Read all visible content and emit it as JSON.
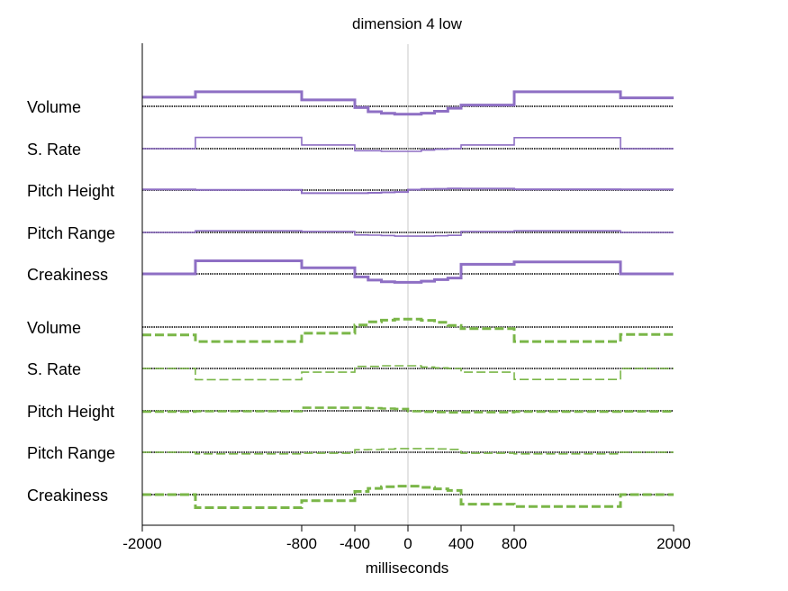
{
  "chart_data": {
    "type": "line",
    "title": "dimension  4 low",
    "xlabel": "milliseconds",
    "ylabel": "",
    "xlim": [
      -2000,
      2000
    ],
    "xticks": [
      -2000,
      -800,
      -400,
      0,
      400,
      800,
      2000
    ],
    "grid": false,
    "center_line_x": 0,
    "segment_edges": [
      -2000,
      -1600,
      -800,
      -400,
      -300,
      -200,
      -100,
      0,
      100,
      200,
      300,
      400,
      800,
      1600,
      2000
    ],
    "series_styles": [
      {
        "color": "#8e6fc4",
        "dash": "solid"
      },
      {
        "color": "#7ab648",
        "dash": "dashed"
      }
    ],
    "rows": [
      {
        "label": "Volume",
        "group": 0,
        "weight": 3,
        "values": [
          0.44,
          0.7,
          0.31,
          -0.06,
          -0.26,
          -0.34,
          -0.38,
          -0.38,
          -0.33,
          -0.24,
          -0.09,
          0.06,
          0.7,
          0.41
        ]
      },
      {
        "label": "S. Rate",
        "group": 0,
        "weight": 1.6,
        "values": [
          0,
          0.54,
          0.18,
          -0.1,
          -0.1,
          -0.13,
          -0.13,
          -0.13,
          -0.07,
          -0.03,
          0,
          0.18,
          0.53,
          0
        ]
      },
      {
        "label": "Pitch Height",
        "group": 0,
        "weight": 2,
        "values": [
          0.03,
          0.01,
          -0.15,
          -0.15,
          -0.13,
          -0.11,
          -0.09,
          0.02,
          0.05,
          0.06,
          0.08,
          0.07,
          0.04,
          0.03
        ]
      },
      {
        "label": "Pitch Range",
        "group": 0,
        "weight": 1.6,
        "values": [
          0,
          0.08,
          0.05,
          -0.12,
          -0.13,
          -0.15,
          -0.18,
          -0.18,
          -0.18,
          -0.16,
          -0.14,
          0.05,
          0.08,
          0
        ]
      },
      {
        "label": "Creakiness",
        "group": 0,
        "weight": 3,
        "values": [
          0,
          0.63,
          0.29,
          -0.15,
          -0.3,
          -0.38,
          -0.41,
          -0.41,
          -0.35,
          -0.28,
          -0.2,
          0.46,
          0.58,
          0
        ]
      },
      {
        "label": "Volume",
        "group": 1,
        "weight": 3,
        "values": [
          -0.38,
          -0.7,
          -0.3,
          0.1,
          0.25,
          0.33,
          0.38,
          0.38,
          0.32,
          0.23,
          0.08,
          -0.08,
          -0.7,
          -0.36
        ]
      },
      {
        "label": "S. Rate",
        "group": 1,
        "weight": 1.6,
        "values": [
          0,
          -0.54,
          -0.18,
          0.1,
          0.1,
          0.13,
          0.13,
          0.13,
          0.07,
          0.03,
          0,
          -0.18,
          -0.53,
          0
        ]
      },
      {
        "label": "Pitch Height",
        "group": 1,
        "weight": 2.6,
        "values": [
          -0.04,
          -0.02,
          0.15,
          0.15,
          0.13,
          0.11,
          0.09,
          -0.02,
          -0.05,
          -0.06,
          -0.08,
          -0.07,
          -0.04,
          -0.03
        ]
      },
      {
        "label": "Pitch Range",
        "group": 1,
        "weight": 1.6,
        "values": [
          0,
          -0.08,
          -0.05,
          0.12,
          0.13,
          0.15,
          0.18,
          0.18,
          0.18,
          0.16,
          0.14,
          -0.05,
          -0.08,
          0
        ]
      },
      {
        "label": "Creakiness",
        "group": 1,
        "weight": 3,
        "values": [
          0,
          -0.63,
          -0.29,
          0.15,
          0.3,
          0.38,
          0.41,
          0.41,
          0.35,
          0.28,
          0.2,
          -0.46,
          -0.58,
          0
        ]
      }
    ]
  }
}
